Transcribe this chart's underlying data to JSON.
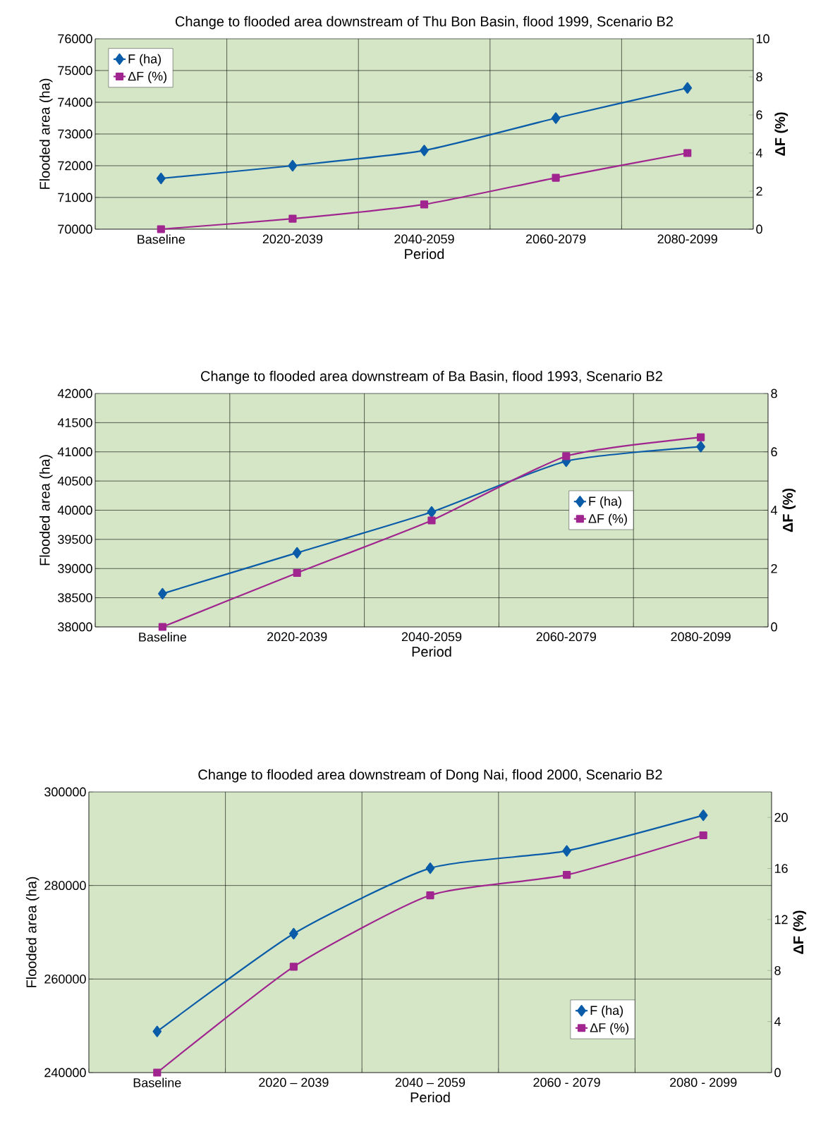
{
  "chart_data": [
    {
      "type": "line",
      "title": "Change to flooded area downstream of Thu Bon Basin, flood 1999, Scenario B2",
      "xlabel": "Period",
      "ylabel": "Flooded area (ha)",
      "y2label": "**ΔF (%)**",
      "categories": [
        "Baseline",
        "2020-2039",
        "2040-2059",
        "2060-2079",
        "2080-2099"
      ],
      "series": [
        {
          "name": "F (ha)",
          "color": "#0a5ca8",
          "marker": "diamond",
          "axis": "y",
          "values": [
            71600,
            72000,
            72480,
            73500,
            74450
          ]
        },
        {
          "name": "ΔF (%)",
          "color": "#a0258f",
          "marker": "square",
          "axis": "y2",
          "values": [
            0,
            0.55,
            1.3,
            2.7,
            4.0
          ]
        }
      ],
      "ylim": [
        70000,
        76000
      ],
      "yticks": [
        70000,
        71000,
        72000,
        73000,
        74000,
        75000,
        76000
      ],
      "y2lim": [
        0,
        10
      ],
      "y2ticks": [
        0,
        2,
        4,
        6,
        8,
        10
      ],
      "grid": true,
      "legend": "top left"
    },
    {
      "type": "line",
      "title": "Change to flooded area downstream of Ba Basin, flood 1993, Scenario B2",
      "xlabel": "Period",
      "ylabel": "Flooded area (ha)",
      "y2label": "**ΔF (%)**",
      "categories": [
        "Baseline",
        "2020-2039",
        "2040-2059",
        "2060-2079",
        "2080-2099"
      ],
      "series": [
        {
          "name": "F (ha)",
          "color": "#0a5ca8",
          "marker": "diamond",
          "axis": "y",
          "values": [
            38570,
            39270,
            39970,
            40840,
            41090
          ]
        },
        {
          "name": "ΔF (%)",
          "color": "#a0258f",
          "marker": "square",
          "axis": "y2",
          "values": [
            0,
            1.85,
            3.65,
            5.85,
            6.5
          ]
        }
      ],
      "ylim": [
        38000,
        42000
      ],
      "yticks": [
        38000,
        38500,
        39000,
        39500,
        40000,
        40500,
        41000,
        41500,
        42000
      ],
      "y2lim": [
        0,
        8
      ],
      "y2ticks": [
        0,
        2,
        4,
        6,
        8
      ],
      "grid": true,
      "legend": "right"
    },
    {
      "type": "line",
      "title": "Change to flooded area downstream of Dong Nai, flood 2000, Scenario B2",
      "xlabel": "Period",
      "ylabel": "Flooded area (ha)",
      "y2label": "**ΔF (%)**",
      "categories": [
        "Baseline",
        "2020 – 2039",
        "2040 – 2059",
        "2060 - 2079",
        "2080 - 2099"
      ],
      "series": [
        {
          "name": "F (ha)",
          "color": "#0a5ca8",
          "marker": "diamond",
          "axis": "y",
          "values": [
            248800,
            269700,
            283700,
            287400,
            295000
          ]
        },
        {
          "name": "ΔF (%)",
          "color": "#a0258f",
          "marker": "square",
          "axis": "y2",
          "values": [
            0,
            8.3,
            13.9,
            15.5,
            18.6
          ]
        }
      ],
      "ylim": [
        240000,
        300000
      ],
      "yticks": [
        240000,
        260000,
        280000,
        300000
      ],
      "y2lim": [
        0,
        22
      ],
      "y2ticks": [
        0,
        4,
        8,
        12,
        16,
        20
      ],
      "grid": true,
      "legend": "bottom right"
    }
  ]
}
